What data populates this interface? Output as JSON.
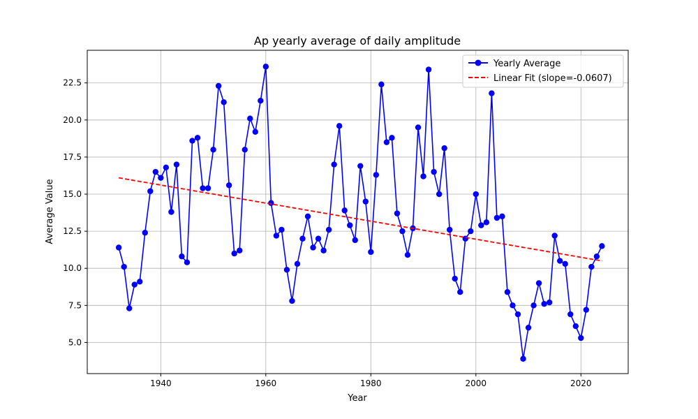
{
  "chart_data": {
    "type": "line",
    "title": "Ap yearly average of daily amplitude",
    "xlabel": "Year",
    "ylabel": "Average Value",
    "xlim": [
      1926,
      2029
    ],
    "ylim": [
      2.9,
      24.7
    ],
    "x_ticks": [
      1940,
      1960,
      1980,
      2000,
      2020
    ],
    "y_ticks": [
      5.0,
      7.5,
      10.0,
      12.5,
      15.0,
      17.5,
      20.0,
      22.5
    ],
    "x_tick_labels": [
      "1940",
      "1960",
      "1980",
      "2000",
      "2020"
    ],
    "y_tick_labels": [
      "5.0",
      "7.5",
      "10.0",
      "12.5",
      "15.0",
      "17.5",
      "20.0",
      "22.5"
    ],
    "grid": true,
    "legend_position": "top-right",
    "series": [
      {
        "name": "Yearly Average",
        "color": "#0000ff",
        "marker": "circle",
        "x": [
          1932,
          1933,
          1934,
          1935,
          1936,
          1937,
          1938,
          1939,
          1940,
          1941,
          1942,
          1943,
          1944,
          1945,
          1946,
          1947,
          1948,
          1949,
          1950,
          1951,
          1952,
          1953,
          1954,
          1955,
          1956,
          1957,
          1958,
          1959,
          1960,
          1961,
          1962,
          1963,
          1964,
          1965,
          1966,
          1967,
          1968,
          1969,
          1970,
          1971,
          1972,
          1973,
          1974,
          1975,
          1976,
          1977,
          1978,
          1979,
          1980,
          1981,
          1982,
          1983,
          1984,
          1985,
          1986,
          1987,
          1988,
          1989,
          1990,
          1991,
          1992,
          1993,
          1994,
          1995,
          1996,
          1997,
          1998,
          1999,
          2000,
          2001,
          2002,
          2003,
          2004,
          2005,
          2006,
          2007,
          2008,
          2009,
          2010,
          2011,
          2012,
          2013,
          2014,
          2015,
          2016,
          2017,
          2018,
          2019,
          2020,
          2021,
          2022,
          2023,
          2024
        ],
        "y": [
          11.4,
          10.1,
          7.3,
          8.9,
          9.1,
          12.4,
          15.2,
          16.5,
          16.1,
          16.8,
          13.8,
          17.0,
          10.8,
          10.4,
          18.6,
          18.8,
          15.4,
          15.4,
          18.0,
          22.3,
          21.2,
          15.6,
          11.0,
          11.2,
          18.0,
          20.1,
          19.2,
          21.3,
          23.6,
          14.4,
          12.2,
          12.6,
          9.9,
          7.8,
          10.3,
          12.0,
          13.5,
          11.4,
          12.0,
          11.2,
          12.6,
          17.0,
          19.6,
          13.9,
          12.9,
          11.9,
          16.9,
          14.5,
          11.1,
          16.3,
          22.4,
          18.5,
          18.8,
          13.7,
          12.5,
          10.9,
          12.7,
          19.5,
          16.2,
          23.4,
          16.5,
          15.0,
          18.1,
          12.6,
          9.3,
          8.4,
          12.0,
          12.5,
          15.0,
          12.9,
          13.1,
          21.8,
          13.4,
          13.5,
          8.4,
          7.5,
          6.9,
          3.9,
          6.0,
          7.5,
          9.0,
          7.6,
          7.7,
          12.2,
          10.5,
          10.3,
          6.9,
          6.1,
          5.3,
          7.2,
          10.1,
          10.8,
          11.5
        ]
      },
      {
        "name": "Linear Fit (slope=-0.0607)",
        "color": "#ff0000",
        "style": "dashed",
        "x": [
          1932,
          2024
        ],
        "y": [
          16.1,
          10.5
        ]
      }
    ]
  }
}
